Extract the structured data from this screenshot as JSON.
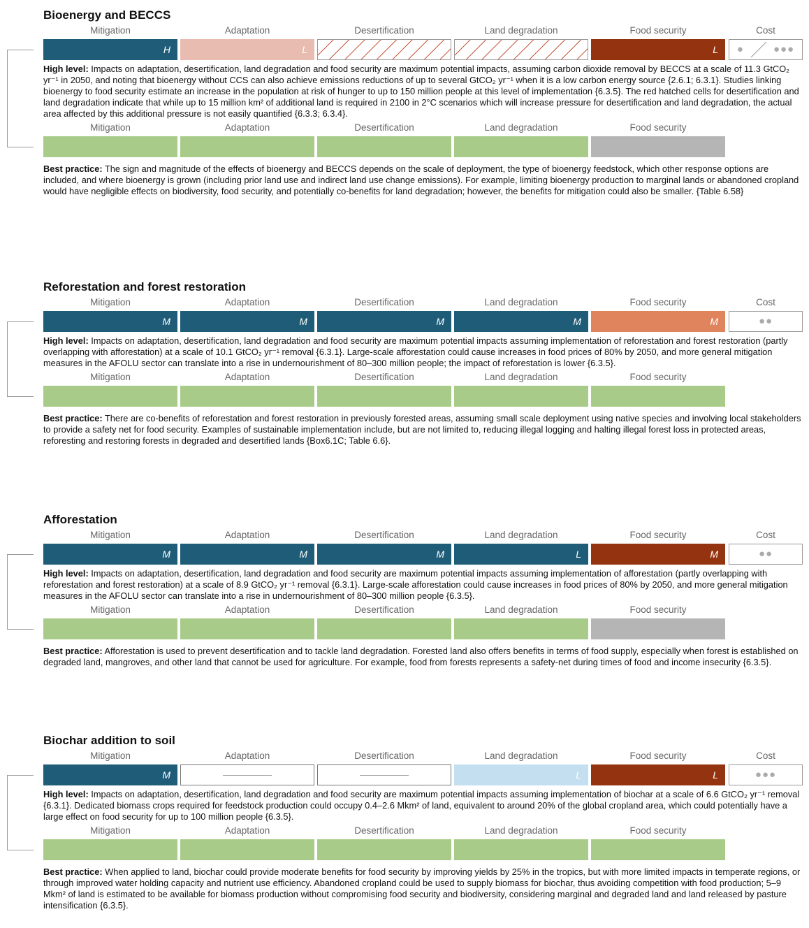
{
  "sections": [
    {
      "title": "Bioenergy and BECCS",
      "high": {
        "headers": [
          "Mitigation",
          "Adaptation",
          "Desertification",
          "Land degradation",
          "Food security",
          "Cost"
        ],
        "cells": [
          {
            "color": "#1f5c78",
            "letter": "H"
          },
          {
            "color": "#e9bcb1",
            "letter": "L"
          },
          {
            "pattern": "hatch"
          },
          {
            "pattern": "hatch"
          },
          {
            "color": "#94330f",
            "letter": "L"
          }
        ],
        "cost": [
          "●",
          "●●●"
        ]
      },
      "high_text": {
        "label": "High level:",
        "text": "Impacts on adaptation, desertification, land degradation and food security are maximum potential impacts, assuming carbon dioxide removal by BECCS at a scale of 11.3 GtCO₂ yr⁻¹ in 2050, and noting that bioenergy without CCS can also achieve emissions reductions of up to several GtCO₂ yr⁻¹ when it is a low carbon energy source {2.6.1; 6.3.1}. Studies linking bioenergy to food security estimate an increase in the population at risk of hunger to up to 150 million people at this level of implementation {6.3.5}. The red hatched cells for desertification and land degradation indicate that while up to 15 million km² of additional land is required in 2100 in 2°C scenarios which will increase pressure for desertification and land degradation, the actual area affected by this additional pressure is not easily quantified {6.3.3; 6.3.4}."
      },
      "best": {
        "headers": [
          "Mitigation",
          "Adaptation",
          "Desertification",
          "Land degradation",
          "Food security"
        ],
        "cells": [
          {
            "color": "#a9cb89"
          },
          {
            "color": "#a9cb89"
          },
          {
            "color": "#a9cb89"
          },
          {
            "color": "#a9cb89"
          },
          {
            "color": "#b5b5b5"
          }
        ]
      },
      "best_text": {
        "label": "Best practice:",
        "text": "The sign and magnitude of the effects of bioenergy and BECCS depends on the scale of deployment, the type of bioenergy feedstock, which other response options are included, and where bioenergy is grown (including prior land use and indirect land use change emissions). For example, limiting bioenergy production to marginal lands or abandoned cropland would have negligible effects on biodiversity, food security, and potentially co-benefits for land degradation; however, the benefits for mitigation could also be smaller. {Table 6.58}"
      }
    },
    {
      "title": "Reforestation and forest restoration",
      "high": {
        "headers": [
          "Mitigation",
          "Adaptation",
          "Desertification",
          "Land degradation",
          "Food security",
          "Cost"
        ],
        "cells": [
          {
            "color": "#1f5c78",
            "letter": "M"
          },
          {
            "color": "#1f5c78",
            "letter": "M"
          },
          {
            "color": "#1f5c78",
            "letter": "M"
          },
          {
            "color": "#1f5c78",
            "letter": "M"
          },
          {
            "color": "#e0845e",
            "letter": "M"
          }
        ],
        "cost": [
          "●●"
        ]
      },
      "high_text": {
        "label": "High level:",
        "text": "Impacts on adaptation, desertification, land degradation and food security are maximum potential impacts assuming implementation of reforestation and forest restoration (partly overlapping with afforestation) at a scale of 10.1 GtCO₂ yr⁻¹ removal {6.3.1}. Large-scale afforestation could cause increases in food prices of 80% by 2050, and more general mitigation measures in the AFOLU sector can translate into a rise in undernourishment of 80–300 million people; the impact of reforestation is lower {6.3.5}."
      },
      "best": {
        "headers": [
          "Mitigation",
          "Adaptation",
          "Desertification",
          "Land degradation",
          "Food security"
        ],
        "cells": [
          {
            "color": "#a9cb89"
          },
          {
            "color": "#a9cb89"
          },
          {
            "color": "#a9cb89"
          },
          {
            "color": "#a9cb89"
          },
          {
            "color": "#a9cb89"
          }
        ]
      },
      "best_text": {
        "label": "Best practice:",
        "text": "There are co-benefits of reforestation and forest restoration in previously forested areas, assuming small scale deployment using native species and involving local stakeholders to provide a safety net for food security. Examples of sustainable implementation include, but are not limited to, reducing illegal logging and halting illegal forest loss in protected areas, reforesting and restoring forests in degraded and desertified lands {Box6.1C; Table 6.6}."
      }
    },
    {
      "title": "Afforestation",
      "high": {
        "headers": [
          "Mitigation",
          "Adaptation",
          "Desertification",
          "Land degradation",
          "Food security",
          "Cost"
        ],
        "cells": [
          {
            "color": "#1f5c78",
            "letter": "M"
          },
          {
            "color": "#1f5c78",
            "letter": "M"
          },
          {
            "color": "#1f5c78",
            "letter": "M"
          },
          {
            "color": "#1f5c78",
            "letter": "L"
          },
          {
            "color": "#94330f",
            "letter": "M"
          }
        ],
        "cost": [
          "●●"
        ]
      },
      "high_text": {
        "label": "High level:",
        "text": "Impacts on adaptation, desertification, land degradation and food security are maximum potential impacts assuming implementation of afforestation (partly overlapping with reforestation and forest restoration) at a scale of 8.9 GtCO₂ yr⁻¹ removal {6.3.1}. Large-scale afforestation could cause increases in food prices of 80% by 2050, and more general mitigation measures in the AFOLU sector can translate into a rise in undernourishment of 80–300 million people {6.3.5}."
      },
      "best": {
        "headers": [
          "Mitigation",
          "Adaptation",
          "Desertification",
          "Land degradation",
          "Food security"
        ],
        "cells": [
          {
            "color": "#a9cb89"
          },
          {
            "color": "#a9cb89"
          },
          {
            "color": "#a9cb89"
          },
          {
            "color": "#a9cb89"
          },
          {
            "color": "#b5b5b5"
          }
        ]
      },
      "best_text": {
        "label": "Best practice:",
        "text": "Afforestation is used to prevent desertification and to tackle land degradation. Forested land also offers benefits in terms of food supply, especially when forest is established on degraded land, mangroves, and other land that cannot be used for agriculture. For example, food from forests represents a safety-net during times of food and income insecurity {6.3.5}."
      }
    },
    {
      "title": "Biochar addition to soil",
      "high": {
        "headers": [
          "Mitigation",
          "Adaptation",
          "Desertification",
          "Land degradation",
          "Food security",
          "Cost"
        ],
        "cells": [
          {
            "color": "#1f5c78",
            "letter": "M"
          },
          {
            "pattern": "dash"
          },
          {
            "pattern": "dash"
          },
          {
            "color": "#c3dff0",
            "letter": "L"
          },
          {
            "color": "#94330f",
            "letter": "L"
          }
        ],
        "cost": [
          "●●●"
        ]
      },
      "high_text": {
        "label": "High level:",
        "text": "Impacts on adaptation, desertification, land degradation and food security are maximum potential impacts assuming implementation of biochar at a scale of 6.6 GtCO₂ yr⁻¹ removal {6.3.1}. Dedicated biomass crops required for feedstock production could occupy 0.4–2.6 Mkm² of land, equivalent to around 20% of the global cropland area, which could potentially have a large effect on food security for up to 100 million people {6.3.5}."
      },
      "best": {
        "headers": [
          "Mitigation",
          "Adaptation",
          "Desertification",
          "Land degradation",
          "Food security"
        ],
        "cells": [
          {
            "color": "#a9cb89"
          },
          {
            "color": "#a9cb89"
          },
          {
            "color": "#a9cb89"
          },
          {
            "color": "#a9cb89"
          },
          {
            "color": "#a9cb89"
          }
        ]
      },
      "best_text": {
        "label": "Best practice:",
        "text": "When applied to land, biochar could provide moderate benefits for food security by improving yields by 25% in the tropics, but with more limited impacts in temperate regions, or through improved water holding capacity and nutrient use efficiency. Abandoned cropland could be used to supply biomass for biochar, thus avoiding competition with food production; 5–9 Mkm² of land is estimated to be available for biomass production without compromising food security and biodiversity, considering marginal and degraded land and land released by pasture intensification {6.3.5}."
      }
    }
  ]
}
